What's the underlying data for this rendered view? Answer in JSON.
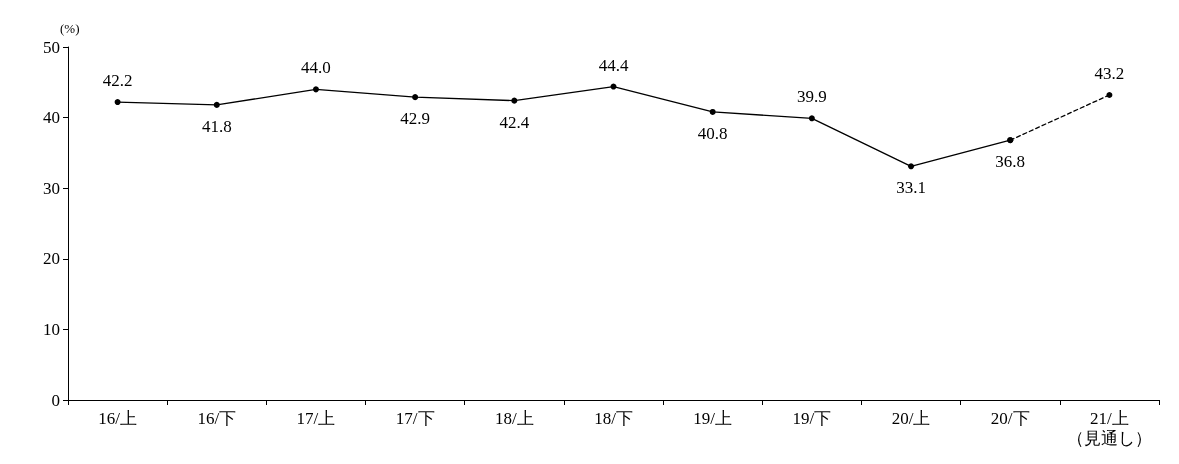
{
  "chart_data": {
    "type": "line",
    "ylabel": "(%)",
    "categories": [
      "16/上",
      "16/下",
      "17/上",
      "17/下",
      "18/上",
      "18/下",
      "19/上",
      "19/下",
      "20/上",
      "20/下",
      "21/上（見通し）"
    ],
    "series": [
      {
        "color": "#000000",
        "values": [
          42.2,
          41.8,
          44.0,
          42.9,
          42.4,
          44.4,
          40.8,
          39.9,
          33.1,
          36.8,
          null
        ],
        "value_labels": [
          "42.2",
          "41.8",
          "44.0",
          "42.9",
          "42.4",
          "44.4",
          "40.8",
          "39.9",
          "33.1",
          "36.8",
          null
        ]
      },
      {
        "color": "#000000",
        "line_style": "dashed",
        "values": [
          null,
          null,
          null,
          null,
          null,
          null,
          null,
          null,
          null,
          36.8,
          43.2
        ],
        "value_labels": [
          null,
          null,
          null,
          null,
          null,
          null,
          null,
          null,
          null,
          null,
          "43.2"
        ]
      }
    ],
    "marker": "circle",
    "line_style": "solid",
    "ylim": [
      0,
      50
    ],
    "yticks": [
      0,
      10,
      20,
      30,
      40,
      50
    ],
    "grid": false
  }
}
